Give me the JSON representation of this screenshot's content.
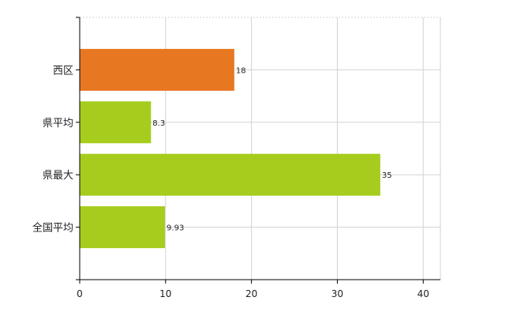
{
  "chart_data": {
    "type": "bar",
    "orientation": "horizontal",
    "categories": [
      "西区",
      "県平均",
      "県最大",
      "全国平均"
    ],
    "values": [
      18,
      8.3,
      35,
      9.93
    ],
    "value_labels": [
      "18",
      "8.3",
      "35",
      "9.93"
    ],
    "bar_colors": [
      "#e87722",
      "#a6cc1d",
      "#a6cc1d",
      "#a6cc1d"
    ],
    "xlim": [
      0,
      42
    ],
    "xticks": [
      0,
      10,
      20,
      30,
      40
    ],
    "grid": true,
    "legend": "none",
    "title": "",
    "xlabel": "",
    "ylabel": ""
  }
}
